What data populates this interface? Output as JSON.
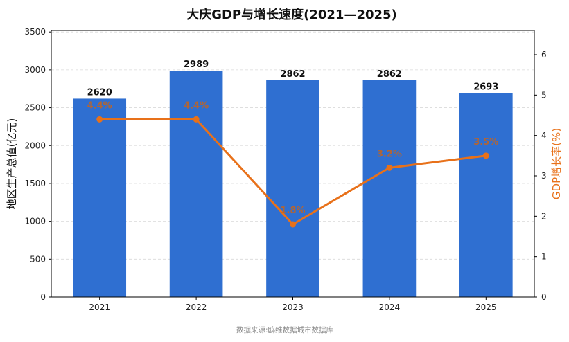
{
  "chart_data": {
    "type": "bar",
    "title": "大庆GDP与增长速度(2021—2025)",
    "categories": [
      "2021",
      "2022",
      "2023",
      "2024",
      "2025"
    ],
    "series": [
      {
        "type": "bar",
        "values": [
          2620,
          2989,
          2862,
          2862,
          2693
        ],
        "value_labels": [
          "2620",
          "2989",
          "2862",
          "2862",
          "2693"
        ],
        "color": "#2f6fd1",
        "axis": "left"
      },
      {
        "type": "line",
        "values": [
          4.4,
          4.4,
          1.8,
          3.2,
          3.5
        ],
        "value_labels": [
          "4.4%",
          "4.4%",
          "1.8%",
          "3.2%",
          "3.5%"
        ],
        "color": "#e8711a",
        "axis": "right"
      }
    ],
    "ylabel": "地区生产总值(亿元)",
    "ylabel_right": "GDP增长率(%)",
    "ylim": [
      0,
      3520
    ],
    "ylim_right": [
      0,
      6.6
    ],
    "yticks": [
      0,
      500,
      1000,
      1500,
      2000,
      2500,
      3000,
      3500
    ],
    "yticks_right": [
      0,
      1,
      2,
      3,
      4,
      5,
      6
    ],
    "grid": "horizontal dashed",
    "source": "数据来源:鸥维数据城市数据库",
    "colors": {
      "bar": "#2f6fd1",
      "line": "#e8711a",
      "right_axis_label": "#e8711a"
    }
  }
}
